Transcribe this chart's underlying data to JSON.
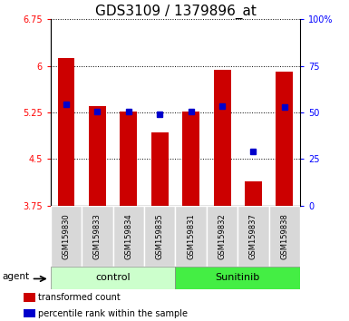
{
  "title": "GDS3109 / 1379896_at",
  "samples": [
    "GSM159830",
    "GSM159833",
    "GSM159834",
    "GSM159835",
    "GSM159831",
    "GSM159832",
    "GSM159837",
    "GSM159838"
  ],
  "bar_values": [
    6.12,
    5.35,
    5.27,
    4.93,
    5.27,
    5.93,
    4.14,
    5.9
  ],
  "blue_values": [
    5.38,
    5.27,
    5.27,
    5.22,
    5.27,
    5.35,
    4.62,
    5.33
  ],
  "bar_color": "#cc0000",
  "blue_color": "#0000cc",
  "ylim_left": [
    3.75,
    6.75
  ],
  "ylim_right": [
    0,
    100
  ],
  "yticks_left": [
    3.75,
    4.5,
    5.25,
    6.0,
    6.75
  ],
  "ytick_labels_left": [
    "3.75",
    "4.5",
    "5.25",
    "6",
    "6.75"
  ],
  "yticks_right": [
    0,
    25,
    50,
    75,
    100
  ],
  "ytick_labels_right": [
    "0",
    "25",
    "50",
    "75",
    "100%"
  ],
  "groups": [
    {
      "label": "control",
      "indices": [
        0,
        1,
        2,
        3
      ],
      "color": "#ccffcc"
    },
    {
      "label": "Sunitinib",
      "indices": [
        4,
        5,
        6,
        7
      ],
      "color": "#44ee44"
    }
  ],
  "agent_label": "agent",
  "legend_bar": "transformed count",
  "legend_blue": "percentile rank within the sample",
  "bar_bottom": 3.75,
  "grid_yticks": [
    4.5,
    5.25,
    6.0,
    6.75
  ],
  "title_fontsize": 11
}
